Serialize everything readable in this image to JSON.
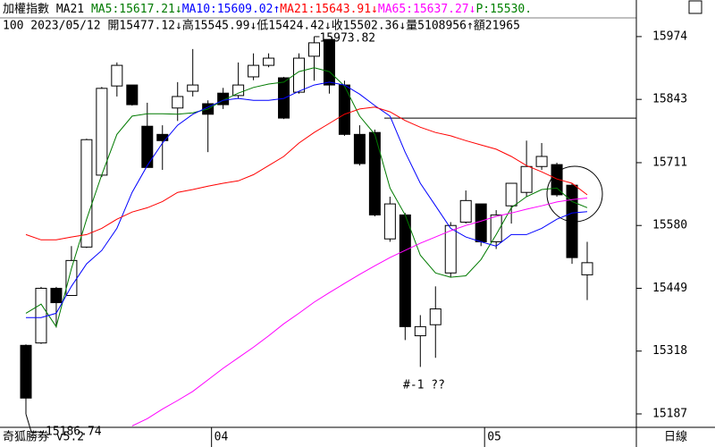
{
  "chart_data": {
    "type": "candlestick",
    "title": "加權指數 MA21",
    "info_line": "100 2023/05/12 開15477.12↓高15545.99↓低15424.42↓收15502.36↓量5108956↑額21965",
    "price_tag": {
      "text": "P:15530.",
      "color": "#008000"
    },
    "footer_left": "奇狐勝券 v5.2",
    "footer_right": "日線",
    "categories": [
      null,
      null,
      null,
      null,
      null,
      null,
      null,
      null,
      null,
      null,
      null,
      null,
      "04",
      null,
      null,
      null,
      null,
      null,
      null,
      null,
      null,
      null,
      null,
      null,
      null,
      null,
      null,
      null,
      null,
      null,
      "05",
      null,
      null,
      null,
      null,
      null,
      null,
      null
    ],
    "open": [
      15330,
      15335,
      15449,
      15434,
      15535,
      15685,
      15871,
      15873,
      15787,
      15770,
      15825,
      15860,
      15834,
      15856,
      15851,
      15890,
      15914,
      15888,
      15858,
      15933,
      15968,
      15873,
      15770,
      15774,
      15552,
      15602,
      15350,
      15373,
      15481,
      15587,
      15625,
      15546,
      15621,
      15649,
      15703,
      15707,
      15664,
      15477.12
    ],
    "high": [
      15332,
      15452,
      15452,
      15537,
      15761,
      15869,
      15920,
      15873,
      15836,
      15789,
      15879,
      15948,
      15841,
      15867,
      15920,
      15939,
      15939,
      15890,
      15939,
      15973.82,
      15968,
      15882,
      15789,
      15780,
      15640,
      15606,
      15393,
      15453,
      15587,
      15653,
      15625,
      15612,
      15668,
      15757,
      15752,
      15711,
      15668,
      15545.99
    ],
    "low": [
      15186.74,
      15333,
      15367,
      15434,
      15533,
      15681,
      15849,
      15830,
      15701,
      15696,
      15798,
      15849,
      15733,
      15823,
      15845,
      15883,
      15910,
      15802,
      15855,
      15882,
      15855,
      15767,
      15705,
      15599,
      15546,
      15341,
      15285,
      15304,
      15472,
      15584,
      15537,
      15531,
      15584,
      15640,
      15696,
      15640,
      15500,
      15424.42
    ],
    "close": [
      15220,
      15449,
      15419,
      15507,
      15759,
      15866,
      15914,
      15832,
      15701,
      15757,
      15849,
      15873,
      15812,
      15832,
      15873,
      15914,
      15929,
      15804,
      15929,
      15961,
      15873,
      15770,
      15709,
      15602,
      15625,
      15369,
      15369,
      15406,
      15580,
      15632,
      15546,
      15602,
      15668,
      15703,
      15724,
      15644,
      15513,
      15502.36
    ],
    "up_color": "#ffffff",
    "down_color": "#000000",
    "lines": [
      {
        "name": "MA5:15617.21↓",
        "color": "#007a00",
        "values": [
          15397,
          15416,
          15369,
          15490,
          15593,
          15686,
          15770,
          15808,
          15813,
          15813,
          15812,
          15815,
          15823,
          15841,
          15856,
          15868,
          15875,
          15879,
          15901,
          15909,
          15901,
          15871,
          15808,
          15770,
          15658,
          15602,
          15518,
          15481,
          15472,
          15475,
          15509,
          15561,
          15617,
          15640,
          15655,
          15658,
          15630,
          15617.21
        ]
      },
      {
        "name": "MA10:15609.02↑",
        "color": "#0000ff",
        "values": [
          15388,
          15388,
          15397,
          15453,
          15500,
          15528,
          15574,
          15649,
          15705,
          15752,
          15789,
          15812,
          15827,
          15841,
          15845,
          15841,
          15841,
          15845,
          15860,
          15873,
          15879,
          15873,
          15854,
          15830,
          15808,
          15733,
          15668,
          15621,
          15574,
          15556,
          15546,
          15537,
          15561,
          15561,
          15574,
          15593,
          15606,
          15609.02
        ]
      },
      {
        "name": "MA21:15643.91↓",
        "color": "#ff0000",
        "values": [
          15561,
          15550,
          15550,
          15556,
          15561,
          15574,
          15593,
          15608,
          15617,
          15630,
          15649,
          15655,
          15662,
          15668,
          15673,
          15686,
          15705,
          15724,
          15752,
          15774,
          15793,
          15812,
          15823,
          15827,
          15817,
          15799,
          15785,
          15774,
          15767,
          15757,
          15748,
          15739,
          15724,
          15705,
          15692,
          15677,
          15668,
          15643.91
        ]
      },
      {
        "name": "MA65:15637.27↓",
        "color": "#ff00ff",
        "values": [
          null,
          null,
          null,
          null,
          null,
          null,
          null,
          15162,
          15177,
          15197,
          15215,
          15234,
          15258,
          15282,
          15304,
          15326,
          15350,
          15375,
          15397,
          15420,
          15440,
          15459,
          15478,
          15496,
          15513,
          15528,
          15543,
          15556,
          15569,
          15580,
          15589,
          15599,
          15606,
          15614,
          15621,
          15629,
          15634,
          15637.27
        ]
      }
    ],
    "reference_line": 15804,
    "annotations": [
      {
        "text": "15973.82"
      },
      {
        "text": "15186.74"
      },
      {
        "text": "#-1 ??"
      }
    ],
    "ylim": [
      15159,
      16013
    ],
    "yticks": [
      15974,
      15843,
      15711,
      15580,
      15449,
      15318,
      15187
    ]
  }
}
